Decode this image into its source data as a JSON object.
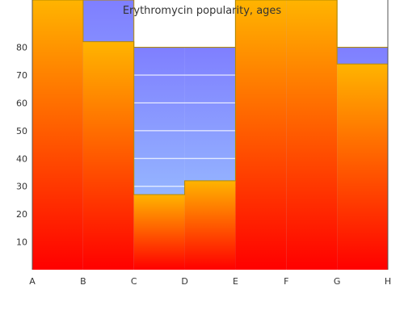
{
  "chart_data": {
    "type": "area",
    "title": "Erythromycin popularity, ages",
    "xlabel": "",
    "ylabel": "",
    "categories": [
      "A",
      "B",
      "C",
      "D",
      "E",
      "F",
      "G",
      "H"
    ],
    "ylim": [
      0,
      97
    ],
    "yticks": [
      10,
      20,
      30,
      40,
      50,
      60,
      70,
      80
    ],
    "grid": true,
    "legend": "none",
    "series": [
      {
        "values": [
          97,
          82,
          27,
          32,
          97,
          97,
          74,
          74
        ],
        "colors": {
          "top": "#ffb400",
          "bottom": "#ff0000",
          "outline": "#b58a00"
        }
      },
      {
        "values": [
          97,
          97,
          80,
          80,
          97,
          97,
          80,
          80
        ],
        "colors": {
          "top": "#7f7fff",
          "bottom": "#a0d0ff",
          "outline": "#b58a00"
        }
      }
    ],
    "colors": {
      "gridline": "#ffffff",
      "axis": "#555555"
    }
  }
}
